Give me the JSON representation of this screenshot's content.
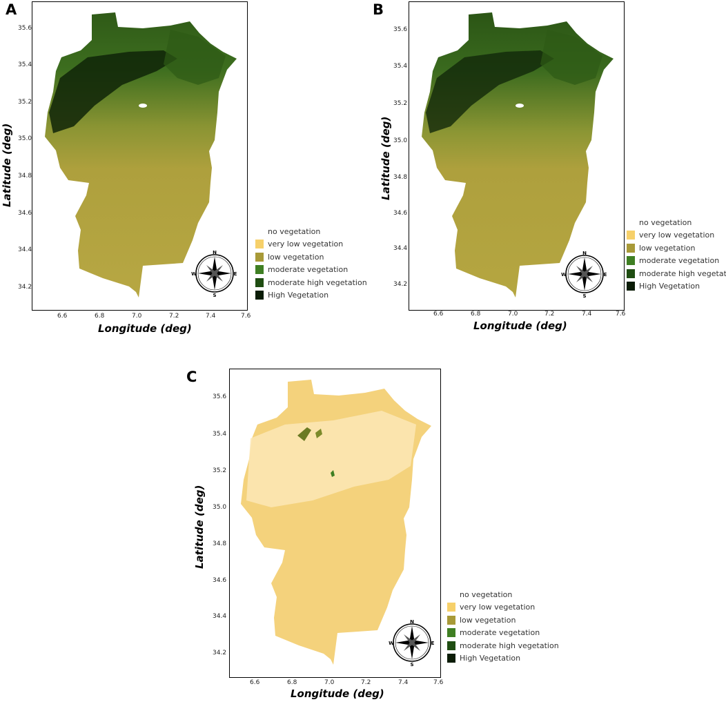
{
  "panels": [
    {
      "label": "A",
      "theme": "green"
    },
    {
      "label": "B",
      "theme": "green"
    },
    {
      "label": "C",
      "theme": "yellow"
    }
  ],
  "axes": {
    "xlabel": "Longitude (deg)",
    "ylabel": "Latitude (deg)",
    "x_ticks": [
      "6.6",
      "6.8",
      "7.0",
      "7.2",
      "7.4",
      "7.6"
    ],
    "y_ticks": [
      "35.6",
      "35.4",
      "35.2",
      "35.0",
      "34.8",
      "34.6",
      "34.4",
      "34.2"
    ],
    "x_values": [
      6.6,
      6.8,
      7.0,
      7.2,
      7.4,
      7.6
    ],
    "y_values": [
      35.6,
      35.4,
      35.2,
      35.0,
      34.8,
      34.6,
      34.4,
      34.2
    ]
  },
  "legend": [
    {
      "label": "no vegetation",
      "color": "#ffffff"
    },
    {
      "label": "very low vegetation",
      "color": "#f6d06a"
    },
    {
      "label": "low vegetation",
      "color": "#a89a38"
    },
    {
      "label": "moderate vegetation",
      "color": "#3f7f23"
    },
    {
      "label": "moderate high vegetation",
      "color": "#1f4d12"
    },
    {
      "label": "High Vegetation",
      "color": "#0b1c06"
    }
  ],
  "compass": {
    "n": "N",
    "s": "S",
    "e": "E",
    "w": "W"
  },
  "colors": {
    "green_dark": "#17330c",
    "green_mid": "#4b7d22",
    "green_light": "#8f9a34",
    "olive": "#b3a63f",
    "yellow_base": "#f4d27c",
    "yellow_light": "#fbe6b0"
  }
}
